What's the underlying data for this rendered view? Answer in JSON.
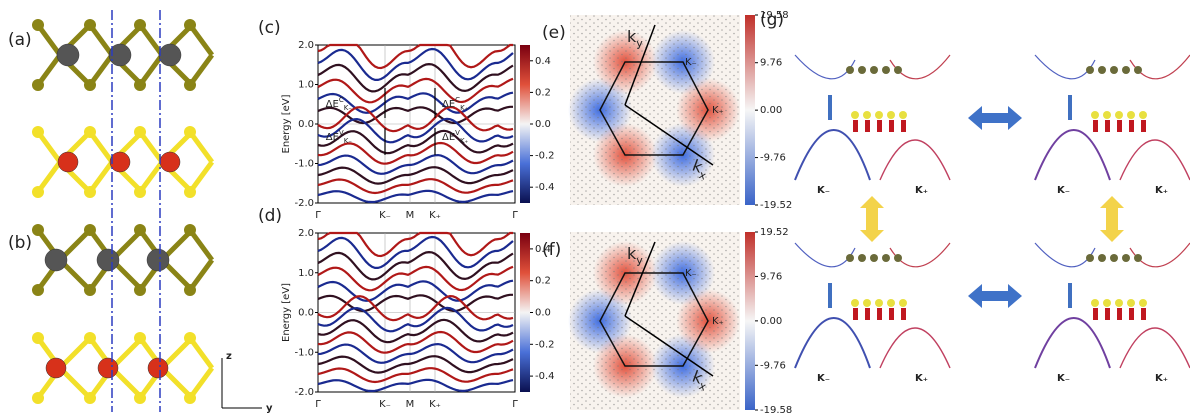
{
  "panels": {
    "a": {
      "label": "(a)"
    },
    "b": {
      "label": "(b)",
      "axis_z": "z",
      "axis_y": "y"
    },
    "c": {
      "label": "(c)",
      "y_label": "Energy [eV]",
      "ylim": [
        -2,
        2
      ],
      "yticks": [
        {
          "value": 2,
          "label": "2.0"
        },
        {
          "value": 1,
          "label": "1.0"
        },
        {
          "value": 0,
          "label": "0.0"
        },
        {
          "value": -1,
          "label": "-1.0"
        },
        {
          "value": -2,
          "label": "-2.0"
        }
      ],
      "xticks": [
        "Γ",
        "K₋",
        "M",
        "K₊",
        "Γ"
      ],
      "clim": [
        -0.5,
        0.5
      ],
      "cticks": [
        0.4,
        0.2,
        {
          "value": 0,
          "label": "0.0"
        },
        -0.2,
        -0.4
      ],
      "annotations": [
        {
          "base": "ΔE",
          "sup": "C",
          "sub": "K₋"
        },
        {
          "base": "ΔE",
          "sup": "C",
          "sub": "K₊"
        },
        {
          "base": "ΔE",
          "sup": "V",
          "sub": "K₋"
        },
        {
          "base": "ΔE",
          "sup": "V",
          "sub": "K₊"
        }
      ]
    },
    "d": {
      "label": "(d)",
      "y_label": "Energy [eV]",
      "ylim": [
        -2,
        2
      ],
      "yticks": [
        {
          "value": 2,
          "label": "2.0"
        },
        {
          "value": 1,
          "label": "1.0"
        },
        {
          "value": 0,
          "label": "0.0"
        },
        {
          "value": -1,
          "label": "-1.0"
        },
        {
          "value": -2,
          "label": "-2.0"
        }
      ],
      "xticks": [
        "Γ",
        "K₋",
        "M",
        "K₊",
        "Γ"
      ],
      "clim": [
        -0.5,
        0.5
      ],
      "cticks": [
        0.4,
        0.2,
        {
          "value": 0,
          "label": "0.0"
        },
        -0.2,
        -0.4
      ]
    },
    "e": {
      "label": "(e)",
      "ky": "k",
      "ky_sub": "y",
      "kx": "k",
      "kx_sub": "x",
      "kminus": "K₋",
      "kplus": "K₊",
      "clim": [
        -19.52,
        19.58
      ],
      "cticks": [
        19.58,
        9.76,
        {
          "value": 0,
          "label": "0.00"
        },
        -9.76,
        -19.52
      ]
    },
    "f": {
      "label": "(f)",
      "ky": "k",
      "ky_sub": "y",
      "kx": "k",
      "kx_sub": "x",
      "kminus": "K₋",
      "kplus": "K₊",
      "clim": [
        -19.58,
        19.52
      ],
      "cticks": [
        19.52,
        9.76,
        {
          "value": 0,
          "label": "0.00"
        },
        -9.76,
        -19.58
      ]
    },
    "g": {
      "label": "(g)",
      "sub_panels": [
        {
          "left": "K₋",
          "right": "K₊"
        },
        {
          "left": "K₋",
          "right": "K₊"
        },
        {
          "left": "K₋",
          "right": "K₊"
        },
        {
          "left": "K₋",
          "right": "K₊"
        }
      ]
    }
  }
}
